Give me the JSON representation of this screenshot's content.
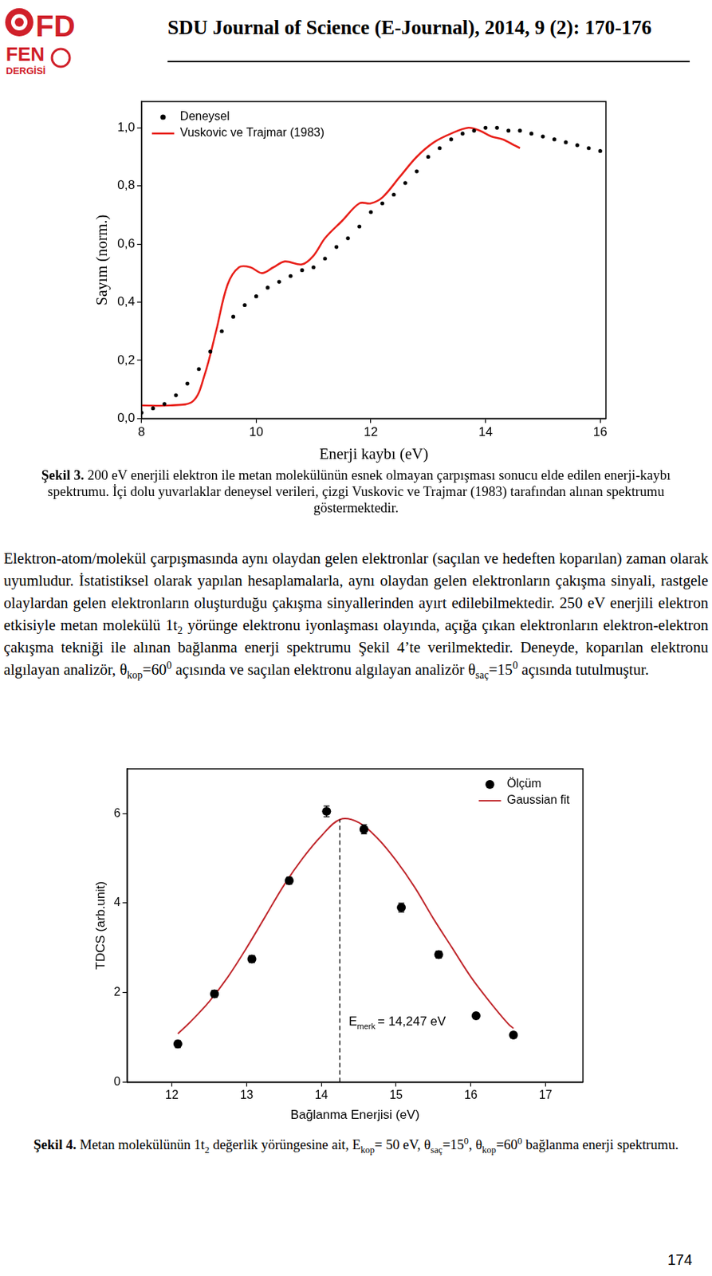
{
  "header": {
    "logo": [
      "FD",
      "FEN",
      "DERGİSİ"
    ],
    "journal": "SDU Journal of Science (E-Journal), 2014, 9 (2): 170-176"
  },
  "chart_data": [
    {
      "type": "scatter",
      "x_label": "Enerji kaybı (eV)",
      "y_label": "Sayım (norm.)",
      "xlim": [
        8,
        16.1
      ],
      "ylim": [
        0,
        1.09
      ],
      "xticks": [
        8,
        10,
        12,
        14,
        16
      ],
      "yticks": [
        {
          "value": 0,
          "label": "0,0"
        },
        {
          "value": 0.2,
          "label": "0,2"
        },
        {
          "value": 0.4,
          "label": "0,4"
        },
        {
          "value": 0.6,
          "label": "0,6"
        },
        {
          "value": 0.8,
          "label": "0,8"
        },
        {
          "value": 1.0,
          "label": "1,0"
        }
      ],
      "grid": false,
      "legend": "upper left",
      "series": [
        {
          "name": "Deneysel",
          "color": "#000000",
          "type": "scatter",
          "marker": "circle",
          "x": [
            8.0,
            8.2,
            8.4,
            8.6,
            8.8,
            9.0,
            9.2,
            9.4,
            9.6,
            9.8,
            10.0,
            10.2,
            10.4,
            10.6,
            10.8,
            11.0,
            11.2,
            11.4,
            11.6,
            11.8,
            12.0,
            12.2,
            12.4,
            12.6,
            12.8,
            13.0,
            13.2,
            13.4,
            13.6,
            13.8,
            14.0,
            14.2,
            14.4,
            14.6,
            14.8,
            15.0,
            15.2,
            15.4,
            15.6,
            15.8,
            16.0
          ],
          "values": [
            0.02,
            0.035,
            0.05,
            0.08,
            0.12,
            0.17,
            0.23,
            0.3,
            0.35,
            0.39,
            0.42,
            0.45,
            0.47,
            0.49,
            0.51,
            0.52,
            0.55,
            0.59,
            0.62,
            0.66,
            0.71,
            0.74,
            0.77,
            0.81,
            0.85,
            0.9,
            0.93,
            0.96,
            0.98,
            0.99,
            1.0,
            1.0,
            0.99,
            0.99,
            0.98,
            0.97,
            0.96,
            0.95,
            0.94,
            0.93,
            0.92
          ]
        },
        {
          "name": "Vuskovic ve Trajmar (1983)",
          "color": "#e8201a",
          "type": "line",
          "line_style": "solid",
          "x": [
            8.0,
            8.5,
            8.9,
            9.1,
            9.3,
            9.5,
            9.7,
            9.9,
            10.1,
            10.3,
            10.5,
            10.8,
            11.0,
            11.2,
            11.5,
            11.8,
            12.0,
            12.2,
            12.5,
            12.8,
            13.1,
            13.4,
            13.7,
            13.9,
            14.1,
            14.3,
            14.5,
            14.6
          ],
          "values": [
            0.045,
            0.045,
            0.06,
            0.15,
            0.3,
            0.46,
            0.52,
            0.52,
            0.5,
            0.52,
            0.54,
            0.53,
            0.56,
            0.62,
            0.68,
            0.74,
            0.74,
            0.76,
            0.83,
            0.9,
            0.95,
            0.98,
            1.0,
            0.99,
            0.97,
            0.96,
            0.94,
            0.93
          ]
        }
      ]
    },
    {
      "type": "scatter",
      "x_label": "Bağlanma Enerjisi (eV)",
      "y_label": "TDCS (arb.unit)",
      "xlim": [
        11.4,
        17.5
      ],
      "ylim": [
        0,
        7
      ],
      "xticks": [
        12,
        13,
        14,
        15,
        16,
        17
      ],
      "yticks": [
        0,
        2,
        4,
        6
      ],
      "grid": false,
      "legend": "upper right",
      "series": [
        {
          "name": "Ölçüm",
          "color": "#000000",
          "type": "scatter",
          "marker": "circle",
          "x": [
            12.08,
            12.57,
            13.07,
            13.57,
            14.07,
            14.57,
            15.07,
            15.57,
            16.07,
            16.57
          ],
          "values": [
            0.85,
            1.97,
            2.75,
            4.5,
            6.05,
            5.65,
            3.9,
            2.85,
            1.48,
            1.05
          ],
          "errors": [
            0.08,
            0.08,
            0.08,
            0.08,
            0.12,
            0.1,
            0.1,
            0.08,
            0.06,
            0.06
          ]
        },
        {
          "name": "Gaussian fit",
          "color": "#c0282d",
          "type": "line",
          "line_style": "solid",
          "x": [
            12.08,
            12.25,
            12.5,
            12.75,
            13.0,
            13.25,
            13.5,
            13.75,
            14.0,
            14.25,
            14.5,
            14.75,
            15.0,
            15.25,
            15.5,
            15.75,
            16.0,
            16.25,
            16.5,
            16.57
          ],
          "values": [
            1.08,
            1.35,
            1.8,
            2.35,
            3.0,
            3.7,
            4.4,
            5.0,
            5.5,
            5.87,
            5.8,
            5.45,
            4.95,
            4.35,
            3.65,
            3.0,
            2.35,
            1.8,
            1.3,
            1.2
          ]
        }
      ],
      "annotations": [
        {
          "x": 14.247,
          "y": 5.87,
          "line_style": "dashed",
          "label": "E",
          "subscript": "merk",
          "text": "= 14,247 eV"
        }
      ]
    }
  ],
  "figure_captions": [
    [
      {
        "text": "Şekil 3.",
        "style": "bold"
      },
      {
        "text": " 200 eV enerjili elektron ile metan molekülünün esnek olmayan çarpışması sonucu elde edilen enerji-kaybı spektrumu. İçi dolu yuvarlaklar deneysel verileri, çizgi Vuskovic ve Trajmar (1983) tarafından alınan spektrumu göstermektedir."
      }
    ],
    [
      {
        "text": "Şekil 4.",
        "style": "bold"
      },
      {
        "text": " Metan molekülünün 1t"
      },
      {
        "text": "2",
        "style": "sub"
      },
      {
        "text": " değerlik yörüngesine ait, E"
      },
      {
        "text": "kop",
        "style": "sub"
      },
      {
        "text": "= 50 eV, θ"
      },
      {
        "text": "saç",
        "style": "sub"
      },
      {
        "text": "=15"
      },
      {
        "text": "0",
        "style": "sup"
      },
      {
        "text": ", θ"
      },
      {
        "text": "kop",
        "style": "sub"
      },
      {
        "text": "=60"
      },
      {
        "text": "0",
        "style": "sup"
      },
      {
        "text": " bağlanma enerji spektrumu."
      }
    ]
  ],
  "paragraph": [
    {
      "text": "Elektron-atom/molekül çarpışmasında aynı olaydan gelen elektronlar (saçılan ve hedeften koparılan) zaman olarak uyumludur. İstatistiksel olarak yapılan hesaplamalarla, aynı olaydan gelen elektronların çakışma sinyali, rastgele olaylardan gelen elektronların oluşturduğu çakışma sinyallerinden ayırt edilebilmektedir. 250 eV enerjili elektron etkisiyle metan molekülü 1t"
    },
    {
      "text": "2",
      "style": "sub"
    },
    {
      "text": " yörünge elektronu iyonlaşması olayında, açığa çıkan elektronların elektron-elektron çakışma tekniği ile alınan bağlanma enerji spektrumu Şekil 4’te verilmektedir. Deneyde, koparılan elektronu algılayan analizör, θ"
    },
    {
      "text": "kop",
      "style": "sub"
    },
    {
      "text": "=60"
    },
    {
      "text": "0",
      "style": "sup"
    },
    {
      "text": " açısında ve saçılan elektronu algılayan analizör θ"
    },
    {
      "text": "saç",
      "style": "sub"
    },
    {
      "text": "=15"
    },
    {
      "text": "0",
      "style": "sup"
    },
    {
      "text": " açısında tutulmuştur."
    }
  ],
  "page_number": "174"
}
